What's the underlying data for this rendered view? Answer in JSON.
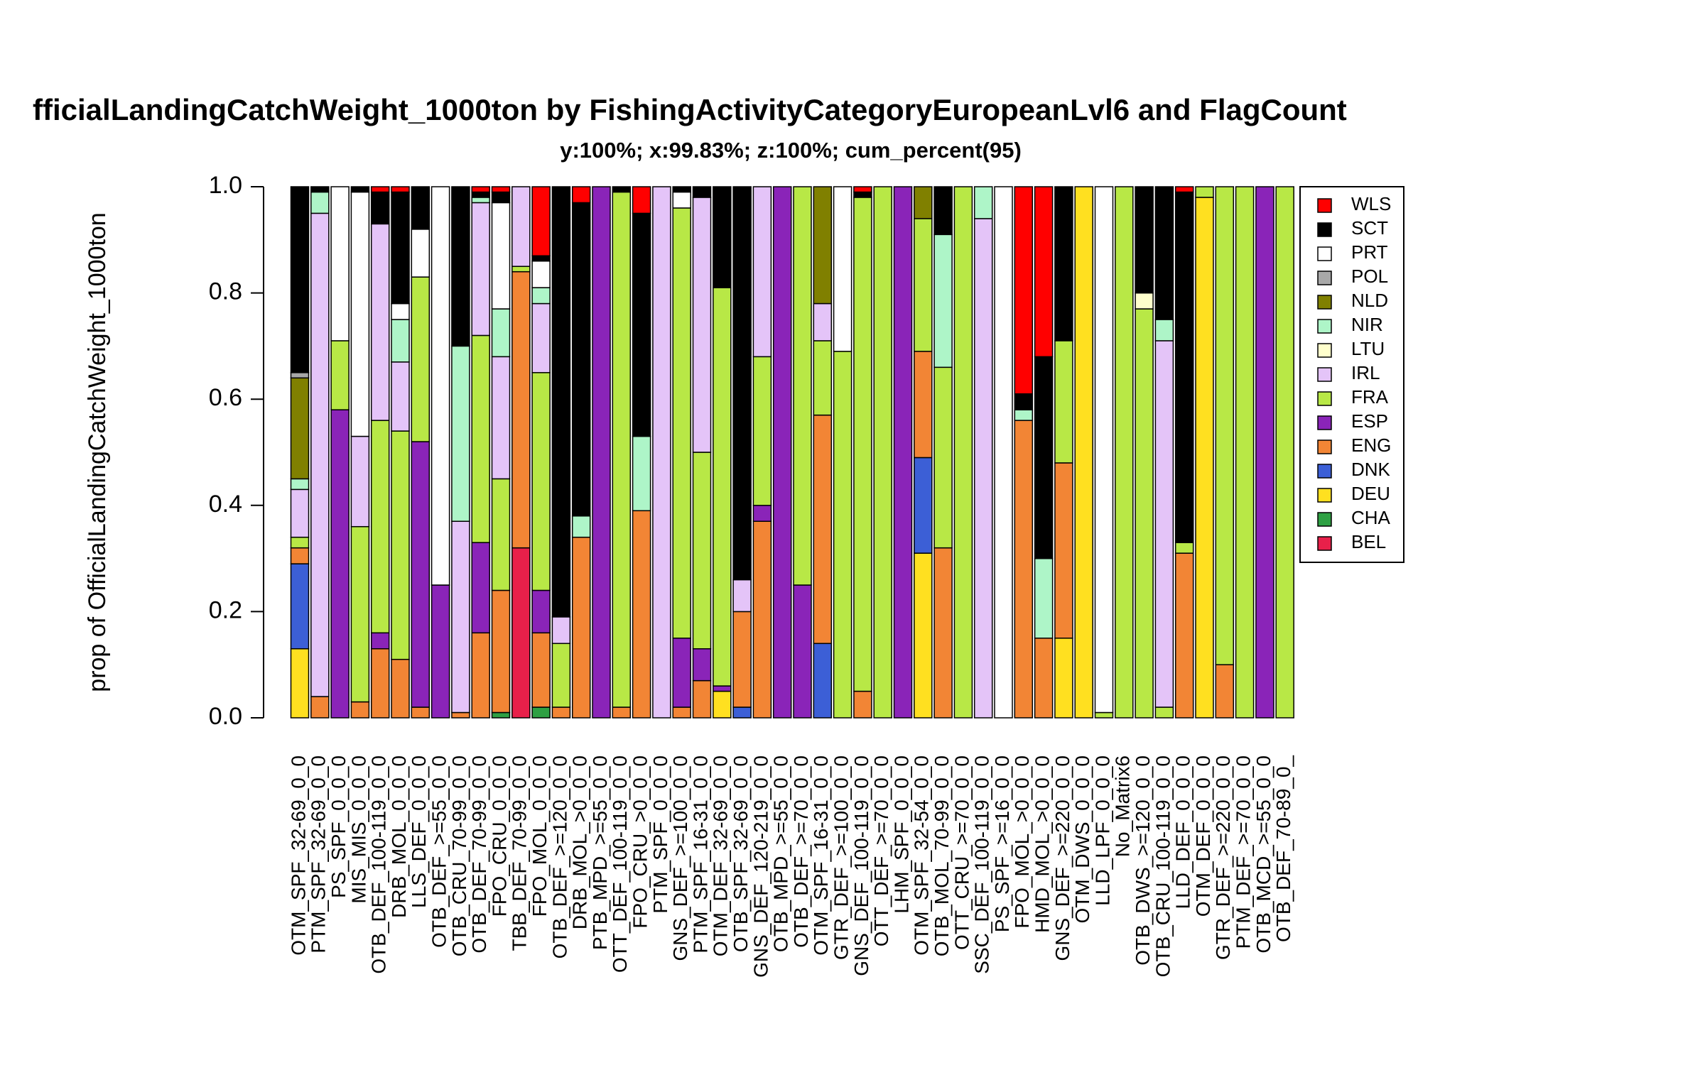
{
  "chart_data": {
    "type": "stacked_bar",
    "title": "fficialLandingCatchWeight_1000ton by FishingActivityCategoryEuropeanLvl6 and FlagCount",
    "subtitle": "y:100%; x:99.83%; z:100%; cum_percent(95)",
    "y_label": "prop of OfficialLandingCatchWeight_1000ton",
    "ylim": [
      0,
      1
    ],
    "yticks": [
      {
        "value": 0,
        "label": "0.0"
      },
      0.2,
      0.4,
      0.6,
      0.8,
      {
        "value": 1,
        "label": "1.0"
      }
    ],
    "legend_position": "topright",
    "categories": [
      "OTM_SPF_32-69_0_0",
      "PTM_SPF_32-69_0_0",
      "PS_SPF_0_0_0",
      "MIS_MIS_0_0_0",
      "OTB_DEF_100-119_0_0",
      "DRB_MOL_0_0_0",
      "LLS_DEF_0_0_0",
      "OTB_DEF_>=55_0_0",
      "OTB_CRU_70-99_0_0",
      "OTB_DEF_70-99_0_0",
      "FPO_CRU_0_0_0",
      "TBB_DEF_70-99_0_0",
      "FPO_MOL_0_0_0",
      "OTB_DEF_>=120_0_0",
      "DRB_MOL_>0_0_0",
      "PTB_MPD_>=55_0_0",
      "OTT_DEF_100-119_0_0",
      "FPO_CRU_>0_0_0",
      "PTM_SPF_0_0_0",
      "GNS_DEF_>=100_0_0",
      "PTM_SPF_16-31_0_0",
      "OTM_DEF_32-69_0_0",
      "OTB_SPF_32-69_0_0",
      "GNS_DEF_120-219_0_0",
      "OTB_MPD_>=55_0_0",
      "OTB_DEF_>=70_0_0",
      "OTM_SPF_16-31_0_0",
      "GTR_DEF_>=100_0_0",
      "GNS_DEF_100-119_0_0",
      "OTT_DEF_>=70_0_0",
      "LHM_SPF_0_0_0",
      "OTM_SPF_32-54_0_0",
      "OTB_MOL_70-99_0_0",
      "OTT_CRU_>=70_0_0",
      "SSC_DEF_100-119_0_0",
      "PS_SPF_>=16_0_0",
      "FPO_MOL_>0_0_0",
      "HMD_MOL_>0_0_0",
      "GNS_DEF_>=220_0_0",
      "OTM_DWS_0_0_0",
      "LLD_LPF_0_0_0",
      "No_Matrix6",
      "OTB_DWS_>=120_0_0",
      "OTB_CRU_100-119_0_0",
      "LLD_DEF_0_0_0",
      "OTM_DEF_0_0_0",
      "GTR_DEF_>=220_0_0",
      "PTM_DEF_>=70_0_0",
      "OTB_MCD_>=55_0_0",
      "OTB_DEF_70-89_0_"
    ],
    "series": [
      {
        "name": "BEL",
        "color": "#e8204a",
        "values": [
          0,
          0,
          0,
          0,
          0,
          0,
          0,
          0,
          0,
          0,
          0,
          0.32,
          0,
          0,
          0,
          0,
          0,
          0,
          0,
          0,
          0,
          0,
          0,
          0,
          0,
          0,
          0,
          0,
          0,
          0,
          0,
          0,
          0,
          0,
          0,
          0,
          0,
          0,
          0,
          0,
          0,
          0,
          0,
          0,
          0,
          0,
          0,
          0,
          0,
          0
        ]
      },
      {
        "name": "CHA",
        "color": "#2ea043",
        "values": [
          0,
          0,
          0,
          0,
          0,
          0,
          0,
          0,
          0,
          0,
          0.01,
          0,
          0.02,
          0,
          0,
          0,
          0,
          0,
          0,
          0,
          0,
          0,
          0,
          0,
          0,
          0,
          0,
          0,
          0,
          0,
          0,
          0,
          0,
          0,
          0,
          0,
          0,
          0,
          0,
          0,
          0,
          0,
          0,
          0,
          0,
          0,
          0,
          0,
          0,
          0
        ]
      },
      {
        "name": "DEU",
        "color": "#ffe020",
        "values": [
          0.13,
          0,
          0,
          0,
          0,
          0,
          0,
          0,
          0,
          0,
          0,
          0,
          0,
          0,
          0,
          0,
          0,
          0,
          0,
          0,
          0,
          0.05,
          0,
          0,
          0,
          0,
          0,
          0,
          0,
          0,
          0,
          0.31,
          0,
          0,
          0,
          0,
          0,
          0,
          0.15,
          1,
          0,
          0,
          0,
          0,
          0,
          0.98,
          0,
          0,
          0,
          0
        ]
      },
      {
        "name": "DNK",
        "color": "#3c5fd6",
        "values": [
          0.16,
          0,
          0,
          0,
          0,
          0,
          0,
          0,
          0,
          0,
          0,
          0,
          0,
          0,
          0,
          0,
          0,
          0,
          0,
          0,
          0,
          0,
          0.02,
          0,
          0,
          0,
          0.14,
          0,
          0,
          0,
          0,
          0.18,
          0,
          0,
          0,
          0,
          0,
          0,
          0,
          0,
          0,
          0,
          0,
          0,
          0,
          0,
          0,
          0,
          0,
          0
        ]
      },
      {
        "name": "ENG",
        "color": "#f28535",
        "values": [
          0.03,
          0.04,
          0,
          0.03,
          0.13,
          0.11,
          0.02,
          0,
          0.01,
          0.16,
          0.23,
          0.52,
          0.14,
          0.02,
          0.34,
          0,
          0.02,
          0.39,
          0,
          0.02,
          0.07,
          0,
          0.18,
          0.37,
          0,
          0,
          0.43,
          0,
          0.05,
          0,
          0,
          0.2,
          0.32,
          0,
          0,
          0,
          0.56,
          0.15,
          0.33,
          0,
          0,
          0,
          0,
          0,
          0.31,
          0,
          0.1,
          0,
          0,
          0
        ]
      },
      {
        "name": "ESP",
        "color": "#8a24b8",
        "values": [
          0,
          0,
          0.58,
          0,
          0.03,
          0,
          0.5,
          0.25,
          0,
          0.17,
          0,
          0,
          0.08,
          0,
          0,
          1,
          0,
          0,
          0,
          0.13,
          0.06,
          0.01,
          0,
          0.03,
          1,
          0.25,
          0,
          0,
          0,
          0,
          1,
          0,
          0,
          0,
          0,
          0,
          0,
          0,
          0,
          0,
          0,
          0,
          0,
          0,
          0,
          0,
          0,
          0,
          1,
          0
        ]
      },
      {
        "name": "FRA",
        "color": "#b8e846",
        "values": [
          0.02,
          0,
          0.13,
          0.33,
          0.4,
          0.43,
          0.31,
          0,
          0,
          0.39,
          0.21,
          0.01,
          0.41,
          0.12,
          0,
          0,
          0.97,
          0,
          0,
          0.81,
          0.37,
          0.75,
          0,
          0.28,
          0,
          0.75,
          0.14,
          0.69,
          0.93,
          1,
          0,
          0.25,
          0.34,
          1,
          0,
          0,
          0,
          0,
          0.23,
          0,
          0.01,
          1,
          0.77,
          0.02,
          0.02,
          0.02,
          0.9,
          1,
          0,
          1
        ]
      },
      {
        "name": "IRL",
        "color": "#e4c4f8",
        "values": [
          0.09,
          0.91,
          0,
          0.17,
          0.37,
          0.13,
          0,
          0,
          0.36,
          0.25,
          0.23,
          0.15,
          0.13,
          0.05,
          0,
          0,
          0,
          0,
          1,
          0,
          0.48,
          0,
          0.06,
          0.32,
          0,
          0,
          0.07,
          0,
          0,
          0,
          0,
          0,
          0,
          0,
          0.94,
          0,
          0,
          0,
          0,
          0,
          0,
          0,
          0,
          0.69,
          0,
          0,
          0,
          0,
          0,
          0
        ]
      },
      {
        "name": "LTU",
        "color": "#ffffcc",
        "values": [
          0,
          0,
          0,
          0,
          0,
          0,
          0,
          0,
          0,
          0,
          0,
          0,
          0,
          0,
          0,
          0,
          0,
          0,
          0,
          0,
          0,
          0,
          0,
          0,
          0,
          0,
          0,
          0,
          0,
          0,
          0,
          0,
          0,
          0,
          0,
          0,
          0,
          0,
          0,
          0,
          0,
          0,
          0.03,
          0,
          0,
          0,
          0,
          0,
          0,
          0
        ]
      },
      {
        "name": "NIR",
        "color": "#aef5c8",
        "values": [
          0.02,
          0.04,
          0,
          0,
          0,
          0.08,
          0,
          0,
          0.33,
          0.01,
          0.09,
          0,
          0.03,
          0,
          0.04,
          0,
          0,
          0.14,
          0,
          0,
          0,
          0,
          0,
          0,
          0,
          0,
          0,
          0,
          0,
          0,
          0,
          0,
          0.25,
          0,
          0.06,
          0,
          0.02,
          0.15,
          0,
          0,
          0,
          0,
          0,
          0.04,
          0,
          0,
          0,
          0,
          0,
          0
        ]
      },
      {
        "name": "NLD",
        "color": "#808000",
        "values": [
          0.19,
          0,
          0,
          0,
          0,
          0,
          0,
          0,
          0,
          0,
          0,
          0,
          0,
          0,
          0,
          0,
          0,
          0,
          0,
          0,
          0,
          0,
          0,
          0,
          0,
          0,
          0.22,
          0,
          0,
          0,
          0,
          0.06,
          0,
          0,
          0,
          0,
          0,
          0,
          0,
          0,
          0,
          0,
          0,
          0,
          0,
          0,
          0,
          0,
          0,
          0
        ]
      },
      {
        "name": "POL",
        "color": "#a8a8a8",
        "values": [
          0.01,
          0,
          0,
          0,
          0,
          0,
          0,
          0,
          0,
          0,
          0,
          0,
          0,
          0,
          0,
          0,
          0,
          0,
          0,
          0,
          0,
          0,
          0,
          0,
          0,
          0,
          0,
          0,
          0,
          0,
          0,
          0,
          0,
          0,
          0,
          0,
          0,
          0,
          0,
          0,
          0,
          0,
          0,
          0,
          0,
          0,
          0,
          0,
          0,
          0
        ]
      },
      {
        "name": "PRT",
        "color": "#ffffff",
        "values": [
          0,
          0,
          0.29,
          0.46,
          0,
          0.03,
          0.09,
          0.75,
          0,
          0,
          0.2,
          0,
          0.05,
          0,
          0,
          0,
          0,
          0,
          0,
          0.03,
          0,
          0,
          0,
          0,
          0,
          0,
          0,
          0.31,
          0,
          0,
          0,
          0,
          0,
          0,
          0,
          1,
          0,
          0,
          0,
          0,
          0.99,
          0,
          0,
          0,
          0,
          0,
          0,
          0,
          0,
          0
        ]
      },
      {
        "name": "SCT",
        "color": "#000000",
        "values": [
          0.35,
          0.01,
          0,
          0.01,
          0.06,
          0.21,
          0.08,
          0,
          0.3,
          0.01,
          0.02,
          0,
          0.01,
          0.81,
          0.59,
          0,
          0.01,
          0.42,
          0,
          0.01,
          0.02,
          0.19,
          0.74,
          0,
          0,
          0,
          0,
          0,
          0.01,
          0,
          0,
          0,
          0.09,
          0,
          0,
          0,
          0.03,
          0.38,
          0.29,
          0,
          0,
          0,
          0.2,
          0.25,
          0.66,
          0,
          0,
          0,
          0,
          0
        ]
      },
      {
        "name": "WLS",
        "color": "#ff0000",
        "values": [
          0,
          0,
          0,
          0,
          0.01,
          0.01,
          0,
          0,
          0,
          0.01,
          0.01,
          0,
          0.13,
          0,
          0.03,
          0,
          0,
          0.05,
          0,
          0,
          0,
          0,
          0,
          0,
          0,
          0,
          0,
          0,
          0.01,
          0,
          0,
          0,
          0,
          0,
          0,
          0,
          0.39,
          0.32,
          0,
          0,
          0,
          0,
          0,
          0,
          0.01,
          0,
          0,
          0,
          0,
          0
        ]
      }
    ]
  }
}
